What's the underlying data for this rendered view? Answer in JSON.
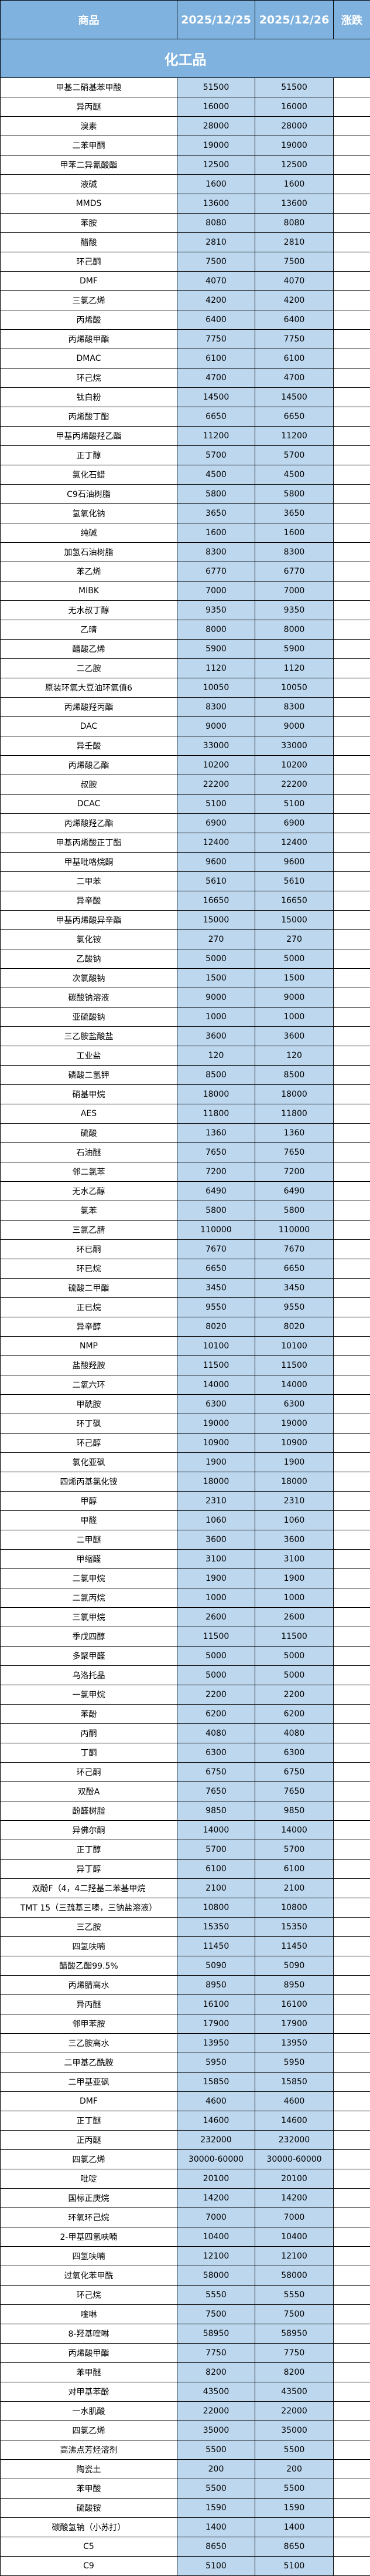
{
  "header": {
    "product": "商品",
    "date1": "2025/12/25",
    "date2": "2025/12/26",
    "change": "涨跌"
  },
  "section": {
    "title": "化工品"
  },
  "colors": {
    "header_bg": "#7fb2de",
    "value_bg": "#bdd7ee",
    "border": "#000000"
  },
  "rows": [
    [
      "甲基二硝基苯甲酸",
      "51500",
      "51500",
      ""
    ],
    [
      "异丙醚",
      "16000",
      "16000",
      ""
    ],
    [
      "溴素",
      "28000",
      "28000",
      ""
    ],
    [
      "二苯甲酮",
      "19000",
      "19000",
      ""
    ],
    [
      "甲苯二异氰酸酯",
      "12500",
      "12500",
      ""
    ],
    [
      "液碱",
      "1600",
      "1600",
      ""
    ],
    [
      "MMDS",
      "13600",
      "13600",
      ""
    ],
    [
      "苯胺",
      "8080",
      "8080",
      ""
    ],
    [
      "醋酸",
      "2810",
      "2810",
      ""
    ],
    [
      "环己酮",
      "7500",
      "7500",
      ""
    ],
    [
      "DMF",
      "4070",
      "4070",
      ""
    ],
    [
      "三氯乙烯",
      "4200",
      "4200",
      ""
    ],
    [
      "丙烯酸",
      "6400",
      "6400",
      ""
    ],
    [
      "丙烯酸甲酯",
      "7750",
      "7750",
      ""
    ],
    [
      "DMAC",
      "6100",
      "6100",
      ""
    ],
    [
      "环己烷",
      "4700",
      "4700",
      ""
    ],
    [
      "钛白粉",
      "14500",
      "14500",
      ""
    ],
    [
      "丙烯酸丁酯",
      "6650",
      "6650",
      ""
    ],
    [
      "甲基丙烯酸羟乙酯",
      "11200",
      "11200",
      ""
    ],
    [
      "正丁醇",
      "5700",
      "5700",
      ""
    ],
    [
      "氯化石蜡",
      "4500",
      "4500",
      ""
    ],
    [
      "C9石油树脂",
      "5800",
      "5800",
      ""
    ],
    [
      "氢氧化钠",
      "3650",
      "3650",
      ""
    ],
    [
      "纯碱",
      "1600",
      "1600",
      ""
    ],
    [
      "加氢石油树脂",
      "8300",
      "8300",
      ""
    ],
    [
      "苯乙烯",
      "6770",
      "6770",
      ""
    ],
    [
      "MIBK",
      "7000",
      "7000",
      ""
    ],
    [
      "无水叔丁醇",
      "9350",
      "9350",
      ""
    ],
    [
      "乙晴",
      "8000",
      "8000",
      ""
    ],
    [
      "醋酸乙烯",
      "5900",
      "5900",
      ""
    ],
    [
      "二乙胺",
      "1120",
      "1120",
      ""
    ],
    [
      "原装环氧大豆油环氧值6",
      "10050",
      "10050",
      ""
    ],
    [
      "丙烯酸羟丙酯",
      "8300",
      "8300",
      ""
    ],
    [
      "DAC",
      "9000",
      "9000",
      ""
    ],
    [
      "异壬酸",
      "33000",
      "33000",
      ""
    ],
    [
      "丙烯酸乙酯",
      "10200",
      "10200",
      ""
    ],
    [
      "叔胺",
      "22200",
      "22200",
      ""
    ],
    [
      "DCAC",
      "5100",
      "5100",
      ""
    ],
    [
      "丙烯酸羟乙酯",
      "6900",
      "6900",
      ""
    ],
    [
      "甲基丙烯酸正丁酯",
      "12400",
      "12400",
      ""
    ],
    [
      "甲基吡咯烷酮",
      "9600",
      "9600",
      ""
    ],
    [
      "二甲苯",
      "5610",
      "5610",
      ""
    ],
    [
      "异辛酸",
      "16650",
      "16650",
      ""
    ],
    [
      "甲基丙烯酸异辛酯",
      "15000",
      "15000",
      ""
    ],
    [
      "氯化铵",
      "270",
      "270",
      ""
    ],
    [
      "乙酸钠",
      "5000",
      "5000",
      ""
    ],
    [
      "次氯酸钠",
      "1500",
      "1500",
      ""
    ],
    [
      "碳酸钠溶液",
      "9000",
      "9000",
      ""
    ],
    [
      "亚硫酸钠",
      "1000",
      "1000",
      ""
    ],
    [
      "三乙胺盐酸盐",
      "3600",
      "3600",
      ""
    ],
    [
      "工业盐",
      "120",
      "120",
      ""
    ],
    [
      "磷酸二氢钾",
      "8500",
      "8500",
      ""
    ],
    [
      "硝基甲烷",
      "18000",
      "18000",
      ""
    ],
    [
      "AES",
      "11800",
      "11800",
      ""
    ],
    [
      "硫酸",
      "1360",
      "1360",
      ""
    ],
    [
      "石油醚",
      "7650",
      "7650",
      ""
    ],
    [
      "邻二氯苯",
      "7200",
      "7200",
      ""
    ],
    [
      "无水乙醇",
      "6490",
      "6490",
      ""
    ],
    [
      "氯苯",
      "5800",
      "5800",
      ""
    ],
    [
      "三氯乙腈",
      "110000",
      "110000",
      ""
    ],
    [
      "环已酮",
      "7670",
      "7670",
      ""
    ],
    [
      "环已烷",
      "6650",
      "6650",
      ""
    ],
    [
      "硫酸二甲酯",
      "3450",
      "3450",
      ""
    ],
    [
      "正已烷",
      "9550",
      "9550",
      ""
    ],
    [
      "异辛醇",
      "8020",
      "8020",
      ""
    ],
    [
      "NMP",
      "10100",
      "10100",
      ""
    ],
    [
      "盐酸羟胺",
      "11500",
      "11500",
      ""
    ],
    [
      "二氧六环",
      "14000",
      "14000",
      ""
    ],
    [
      "甲酰胺",
      "6300",
      "6300",
      ""
    ],
    [
      "环丁砜",
      "19000",
      "19000",
      ""
    ],
    [
      "环己醇",
      "10900",
      "10900",
      ""
    ],
    [
      "氯化亚砜",
      "1900",
      "1900",
      ""
    ],
    [
      "四烯丙基氯化铵",
      "18000",
      "18000",
      ""
    ],
    [
      "甲醇",
      "2310",
      "2310",
      ""
    ],
    [
      "甲醛",
      "1060",
      "1060",
      ""
    ],
    [
      "二甲醚",
      "3600",
      "3600",
      ""
    ],
    [
      "甲缩醛",
      "3100",
      "3100",
      ""
    ],
    [
      "二氯甲烷",
      "1900",
      "1900",
      ""
    ],
    [
      "二氯丙烷",
      "1000",
      "1000",
      ""
    ],
    [
      "三氯甲烷",
      "2600",
      "2600",
      ""
    ],
    [
      "季戊四醇",
      "11500",
      "11500",
      ""
    ],
    [
      "多聚甲醛",
      "5000",
      "5000",
      ""
    ],
    [
      "乌洛托品",
      "5000",
      "5000",
      ""
    ],
    [
      "一氯甲烷",
      "2200",
      "2200",
      ""
    ],
    [
      "苯酚",
      "6200",
      "6200",
      ""
    ],
    [
      "丙酮",
      "4080",
      "4080",
      ""
    ],
    [
      "丁酮",
      "6300",
      "6300",
      ""
    ],
    [
      "环己酮",
      "6750",
      "6750",
      ""
    ],
    [
      "双酚A",
      "7650",
      "7650",
      ""
    ],
    [
      "酚醛树脂",
      "9850",
      "9850",
      ""
    ],
    [
      "异佛尔酮",
      "14000",
      "14000",
      ""
    ],
    [
      "正丁醇",
      "5700",
      "5700",
      ""
    ],
    [
      "异丁醇",
      "6100",
      "6100",
      ""
    ],
    [
      "双酚F（4，4二羟基二苯基甲烷",
      "2100",
      "2100",
      ""
    ],
    [
      "TMT 15（三巯基三嗪，三钠盐溶液）",
      "10800",
      "10800",
      ""
    ],
    [
      "三乙胺",
      "15350",
      "15350",
      ""
    ],
    [
      "四氢呋喃",
      "11450",
      "11450",
      ""
    ],
    [
      "醋酸乙酯99.5%",
      "5090",
      "5090",
      ""
    ],
    [
      "丙烯腈高水",
      "8950",
      "8950",
      ""
    ],
    [
      "异丙醚",
      "16100",
      "16100",
      ""
    ],
    [
      "邻甲苯胺",
      "17900",
      "17900",
      ""
    ],
    [
      "三乙胺高水",
      "13950",
      "13950",
      ""
    ],
    [
      "二甲基乙酰胺",
      "5950",
      "5950",
      ""
    ],
    [
      "二甲基亚砜",
      "15850",
      "15850",
      ""
    ],
    [
      "DMF",
      "4600",
      "4600",
      ""
    ],
    [
      "正丁醚",
      "14600",
      "14600",
      ""
    ],
    [
      "正丙醚",
      "232000",
      "232000",
      ""
    ],
    [
      "四氯乙烯",
      "30000-60000",
      "30000-60000",
      ""
    ],
    [
      "吡啶",
      "20100",
      "20100",
      ""
    ],
    [
      "国标正庚烷",
      "14200",
      "14200",
      ""
    ],
    [
      "环氧环己烷",
      "7000",
      "7000",
      ""
    ],
    [
      "2-甲基四氢呋喃",
      "10400",
      "10400",
      ""
    ],
    [
      "四氢呋喃",
      "12100",
      "12100",
      ""
    ],
    [
      "过氧化苯甲酰",
      "58000",
      "58000",
      ""
    ],
    [
      "环己烷",
      "5550",
      "5550",
      ""
    ],
    [
      "喹啉",
      "7500",
      "7500",
      ""
    ],
    [
      "8-羟基喹啉",
      "58950",
      "58950",
      ""
    ],
    [
      "丙烯酸甲酯",
      "7750",
      "7750",
      ""
    ],
    [
      "苯甲醚",
      "8200",
      "8200",
      ""
    ],
    [
      "对甲基苯酚",
      "43500",
      "43500",
      ""
    ],
    [
      "一水肌酸",
      "22000",
      "22000",
      ""
    ],
    [
      "四氯乙烯",
      "35000",
      "35000",
      ""
    ],
    [
      "高沸点芳烃溶剂",
      "5500",
      "5500",
      ""
    ],
    [
      "陶瓷土",
      "200",
      "200",
      ""
    ],
    [
      "苯甲酸",
      "5500",
      "5500",
      ""
    ],
    [
      "硫酸铵",
      "1590",
      "1590",
      ""
    ],
    [
      "碳酸氢钠（小苏打）",
      "1400",
      "1400",
      ""
    ],
    [
      "C5",
      "8650",
      "8650",
      ""
    ],
    [
      "C9",
      "5100",
      "5100",
      ""
    ]
  ]
}
